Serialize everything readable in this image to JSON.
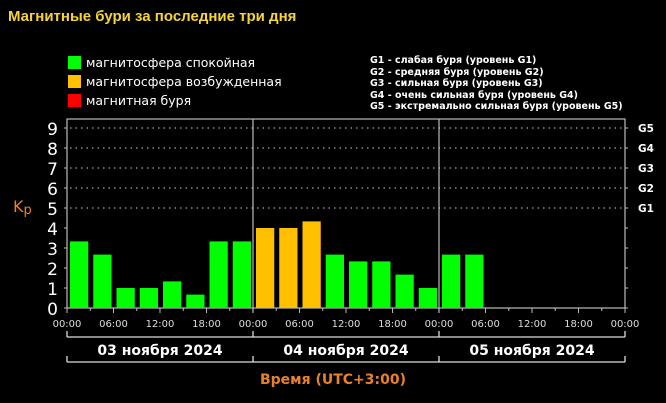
{
  "title": "Магнитные бури за последние три дня",
  "legend": [
    {
      "label": "магнитосфера спокойная",
      "color": "#00ff00"
    },
    {
      "label": "магнитосфера возбужденная",
      "color": "#ffc000"
    },
    {
      "label": "магнитная буря",
      "color": "#ff0000"
    }
  ],
  "g_legend": [
    "G1 - слабая буря (уровень G1)",
    "G2 - средняя буря (уровень G2)",
    "G3 - сильная буря (уровень G3)",
    "G4 - очень сильная буря (уровень G4)",
    "G5 - экстремально сильная буря (уровень G5)"
  ],
  "y_axis_label": "Kp",
  "x_axis_title": "Время (UTC+3:00)",
  "days": [
    "03 ноября 2024",
    "04 ноября 2024",
    "05 ноября 2024"
  ],
  "chart_data": {
    "type": "bar",
    "title": "Магнитные бури за последние три дня",
    "xlabel": "Время (UTC+3:00)",
    "ylabel": "Kp",
    "ylim": [
      0,
      9
    ],
    "yticks": [
      0,
      1,
      2,
      3,
      4,
      5,
      6,
      7,
      8,
      9
    ],
    "right_ticks": {
      "G1": 5,
      "G2": 6,
      "G3": 7,
      "G4": 8,
      "G5": 9
    },
    "x_tick_labels": [
      "00:00",
      "06:00",
      "12:00",
      "18:00",
      "00:00",
      "06:00",
      "12:00",
      "18:00",
      "00:00",
      "06:00",
      "12:00",
      "18:00",
      "00:00"
    ],
    "grid": "dotted horizontal lines at 5-9",
    "categories": [
      "03.11 00-03",
      "03.11 03-06",
      "03.11 06-09",
      "03.11 09-12",
      "03.11 12-15",
      "03.11 15-18",
      "03.11 18-21",
      "03.11 21-24",
      "04.11 00-03",
      "04.11 03-06",
      "04.11 06-09",
      "04.11 09-12",
      "04.11 12-15",
      "04.11 15-18",
      "04.11 18-21",
      "04.11 21-24",
      "05.11 00-03",
      "05.11 03-06"
    ],
    "values": [
      3.33,
      2.67,
      1.0,
      1.0,
      1.33,
      0.67,
      3.33,
      3.33,
      4.0,
      4.0,
      4.33,
      2.67,
      2.33,
      2.33,
      1.67,
      1.0,
      2.67,
      2.67
    ],
    "bar_status": [
      "quiet",
      "quiet",
      "quiet",
      "quiet",
      "quiet",
      "quiet",
      "quiet",
      "quiet",
      "active",
      "active",
      "active",
      "quiet",
      "quiet",
      "quiet",
      "quiet",
      "quiet",
      "quiet",
      "quiet"
    ],
    "legend": [
      "магнитосфера спокойная",
      "магнитосфера возбужденная",
      "магнитная буря"
    ],
    "legend_position": "top"
  }
}
